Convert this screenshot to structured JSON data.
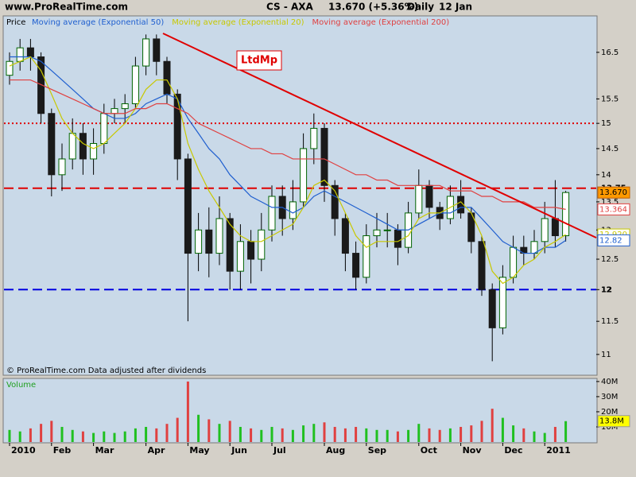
{
  "header": {
    "site": "www.ProRealTime.com",
    "symbol": "CS - AXA",
    "quote": "13.670 (+5.36%)",
    "period": "Daily",
    "date": "12 Jan"
  },
  "footer": "© ProRealTime.com  Data adjusted after dividends",
  "annotation": "LtdMp",
  "chart_data": [
    {
      "type": "candlestick",
      "title": "Price",
      "log_scale": true,
      "categories": [
        "2010",
        null,
        null,
        null,
        "Feb",
        null,
        null,
        null,
        "Mar",
        null,
        null,
        null,
        null,
        "Apr",
        null,
        null,
        null,
        "May",
        null,
        null,
        null,
        "Jun",
        null,
        null,
        null,
        "Jul",
        null,
        null,
        null,
        null,
        "Aug",
        null,
        null,
        null,
        "Sep",
        null,
        null,
        null,
        null,
        "Oct",
        null,
        null,
        null,
        "Nov",
        null,
        null,
        null,
        "Dec",
        null,
        null,
        null,
        "2011",
        null,
        null
      ],
      "open": [
        16.0,
        16.3,
        16.6,
        16.4,
        15.2,
        14.0,
        14.3,
        14.8,
        14.3,
        14.6,
        15.2,
        15.3,
        15.4,
        16.2,
        16.8,
        16.3,
        15.6,
        14.3,
        12.6,
        13.0,
        12.6,
        13.2,
        12.3,
        12.8,
        12.5,
        13.0,
        13.6,
        13.2,
        13.5,
        14.5,
        14.9,
        13.8,
        13.2,
        12.6,
        12.2,
        12.9,
        13.0,
        13.0,
        12.7,
        13.3,
        13.8,
        13.4,
        13.2,
        13.6,
        13.3,
        12.8,
        12.0,
        11.4,
        12.2,
        12.7,
        12.6,
        12.8,
        13.2,
        12.9
      ],
      "high": [
        16.5,
        16.8,
        16.8,
        16.5,
        15.3,
        14.6,
        15.1,
        15.0,
        14.9,
        15.4,
        15.5,
        15.6,
        16.4,
        16.9,
        16.9,
        16.4,
        15.7,
        14.4,
        13.3,
        13.4,
        13.6,
        13.3,
        13.1,
        13.0,
        13.3,
        13.8,
        13.8,
        13.9,
        14.8,
        15.2,
        15.0,
        13.9,
        13.3,
        12.8,
        13.1,
        13.3,
        13.3,
        13.1,
        13.5,
        14.1,
        13.9,
        13.5,
        13.8,
        13.9,
        13.4,
        12.9,
        12.1,
        12.4,
        12.9,
        12.9,
        13.0,
        13.5,
        13.9,
        13.7
      ],
      "low": [
        15.8,
        16.1,
        16.1,
        15.0,
        13.6,
        13.7,
        14.1,
        14.0,
        14.0,
        14.4,
        15.0,
        15.0,
        15.3,
        16.0,
        16.0,
        15.4,
        13.9,
        11.5,
        12.3,
        12.2,
        12.4,
        12.0,
        12.0,
        12.1,
        12.3,
        12.8,
        12.9,
        13.0,
        13.4,
        14.2,
        13.5,
        12.9,
        12.3,
        12.0,
        12.1,
        12.7,
        12.7,
        12.4,
        12.6,
        13.2,
        13.2,
        13.0,
        13.1,
        13.2,
        12.6,
        11.9,
        10.9,
        11.3,
        12.1,
        12.4,
        12.5,
        12.6,
        12.7,
        12.8
      ],
      "close": [
        16.3,
        16.6,
        16.4,
        15.2,
        14.0,
        14.3,
        14.8,
        14.3,
        14.6,
        15.2,
        15.3,
        15.4,
        16.2,
        16.8,
        16.3,
        15.6,
        14.3,
        12.6,
        13.0,
        12.6,
        13.2,
        12.3,
        12.8,
        12.5,
        13.0,
        13.6,
        13.2,
        13.5,
        14.5,
        14.9,
        13.8,
        13.2,
        12.6,
        12.2,
        12.9,
        13.0,
        13.0,
        12.7,
        13.3,
        13.8,
        13.4,
        13.2,
        13.6,
        13.3,
        12.8,
        12.0,
        11.4,
        12.2,
        12.7,
        12.6,
        12.8,
        13.2,
        12.9,
        13.67
      ],
      "last_label": "13.670",
      "up_color": "#006400",
      "down_color": "#1a1a1a",
      "series": [
        {
          "name": "Moving average (Exponential 50)",
          "color": "#1f5fcf",
          "last_label": "12.82",
          "values": [
            16.4,
            16.4,
            16.4,
            16.3,
            16.1,
            15.9,
            15.7,
            15.5,
            15.3,
            15.2,
            15.1,
            15.1,
            15.2,
            15.4,
            15.5,
            15.6,
            15.5,
            15.1,
            14.8,
            14.5,
            14.3,
            14.0,
            13.8,
            13.6,
            13.5,
            13.4,
            13.4,
            13.3,
            13.4,
            13.6,
            13.7,
            13.6,
            13.5,
            13.4,
            13.3,
            13.2,
            13.1,
            13.0,
            13.0,
            13.1,
            13.2,
            13.3,
            13.3,
            13.4,
            13.4,
            13.2,
            13.0,
            12.8,
            12.7,
            12.6,
            12.6,
            12.7,
            12.7,
            12.82
          ]
        },
        {
          "name": "Moving average (Exponential 20)",
          "color": "#c8c800",
          "last_label": "12.920",
          "values": [
            16.2,
            16.3,
            16.4,
            16.1,
            15.6,
            15.1,
            14.8,
            14.6,
            14.5,
            14.6,
            14.8,
            15.0,
            15.3,
            15.7,
            15.9,
            15.9,
            15.5,
            14.6,
            14.1,
            13.7,
            13.4,
            13.1,
            12.9,
            12.8,
            12.8,
            12.9,
            13.0,
            13.1,
            13.4,
            13.8,
            13.9,
            13.7,
            13.3,
            12.9,
            12.7,
            12.8,
            12.8,
            12.8,
            12.9,
            13.2,
            13.3,
            13.3,
            13.4,
            13.5,
            13.3,
            12.9,
            12.3,
            12.1,
            12.2,
            12.4,
            12.5,
            12.7,
            12.8,
            12.92
          ]
        },
        {
          "name": "Moving average (Exponential 200)",
          "color": "#e04040",
          "last_label": "13.364",
          "values": [
            15.9,
            15.9,
            15.9,
            15.8,
            15.7,
            15.6,
            15.5,
            15.4,
            15.3,
            15.2,
            15.2,
            15.2,
            15.3,
            15.3,
            15.4,
            15.4,
            15.3,
            15.2,
            15.0,
            14.9,
            14.8,
            14.7,
            14.6,
            14.5,
            14.5,
            14.4,
            14.4,
            14.3,
            14.3,
            14.3,
            14.3,
            14.2,
            14.1,
            14.0,
            14.0,
            13.9,
            13.9,
            13.8,
            13.8,
            13.8,
            13.8,
            13.8,
            13.7,
            13.7,
            13.7,
            13.6,
            13.6,
            13.5,
            13.5,
            13.5,
            13.4,
            13.4,
            13.4,
            13.364
          ]
        }
      ],
      "levels": [
        {
          "value": 15,
          "color": "#e00000",
          "dash": "2,3"
        },
        {
          "value": 13.75,
          "label": "13.75",
          "color": "#e00000",
          "dash": "12,6"
        },
        {
          "value": 12,
          "label": "12",
          "color": "#0000e0",
          "dash": "12,6"
        }
      ],
      "ylim": [
        10.72,
        17.29
      ],
      "yticks": [
        11,
        11.5,
        12,
        12.5,
        13,
        13.5,
        14,
        14.5,
        15,
        15.5,
        16.5
      ]
    },
    {
      "type": "bar",
      "title": "Volume",
      "values": [
        8,
        7,
        9,
        12,
        14,
        10,
        8,
        7,
        6,
        7,
        6,
        7,
        9,
        10,
        9,
        12,
        16,
        40,
        18,
        15,
        12,
        14,
        10,
        9,
        8,
        10,
        9,
        8,
        11,
        12,
        13,
        10,
        9,
        10,
        9,
        8,
        8,
        7,
        8,
        12,
        9,
        8,
        9,
        10,
        11,
        14,
        22,
        16,
        11,
        9,
        7,
        6,
        10,
        13.8
      ],
      "last_label": "13.8M",
      "up_color": "#20c020",
      "down_color": "#e04040",
      "ylim": [
        0,
        41
      ],
      "yticks": [
        {
          "value": 10,
          "label": "10M"
        },
        {
          "value": 20,
          "label": "20M"
        },
        {
          "value": 30,
          "label": "30M"
        },
        {
          "value": 40,
          "label": "40M"
        }
      ]
    }
  ]
}
